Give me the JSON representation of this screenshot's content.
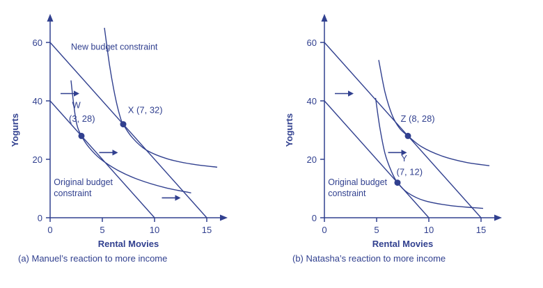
{
  "page": {
    "background": "#ffffff",
    "accent": "#31408f"
  },
  "chart_data": [
    {
      "type": "line",
      "panel": "a",
      "caption": "(a) Manuel’s reaction to more income",
      "xlabel": "Rental Movies",
      "ylabel": "Yogurts",
      "xlim": [
        0,
        17
      ],
      "ylim": [
        0,
        70
      ],
      "xticks": [
        0,
        5,
        10,
        15
      ],
      "yticks": [
        0,
        20,
        40,
        60
      ],
      "grid": false,
      "legend": "none",
      "budget_lines": [
        {
          "name": "original-budget-constraint",
          "points": [
            [
              0,
              40
            ],
            [
              10,
              0
            ]
          ]
        },
        {
          "name": "new-budget-constraint",
          "points": [
            [
              0,
              60
            ],
            [
              15,
              0
            ]
          ]
        }
      ],
      "annotations": [
        {
          "x": 2.0,
          "y": 57.5,
          "lines": [
            "New budget constraint"
          ]
        },
        {
          "x": 0.35,
          "y": 11.2,
          "lines": [
            "Original budget",
            "constraint"
          ]
        }
      ],
      "indifference_curves": [
        {
          "name": "indifference-curve-through-W",
          "points": [
            [
              2.0,
              47
            ],
            [
              2.25,
              39
            ],
            [
              2.55,
              32
            ],
            [
              3,
              28
            ],
            [
              3.7,
              24.2
            ],
            [
              4.8,
              20.2
            ],
            [
              6.5,
              16.2
            ],
            [
              8.5,
              13
            ],
            [
              11,
              10.3
            ],
            [
              13.5,
              8.5
            ]
          ]
        },
        {
          "name": "indifference-curve-through-X",
          "points": [
            [
              5.2,
              65
            ],
            [
              5.7,
              52
            ],
            [
              6.2,
              42
            ],
            [
              6.65,
              35.2
            ],
            [
              7,
              32
            ],
            [
              7.9,
              27.3
            ],
            [
              9.2,
              23.2
            ],
            [
              11.2,
              20.2
            ],
            [
              13.5,
              18.4
            ],
            [
              16,
              17.3
            ]
          ]
        }
      ],
      "points": [
        {
          "name": "W",
          "x": 3,
          "y": 28,
          "labels": [
            {
              "text": "W",
              "x": 2.1,
              "y": 37.5
            },
            {
              "text": "(3, 28)",
              "x": 1.8,
              "y": 32.8
            }
          ]
        },
        {
          "name": "X",
          "x": 7,
          "y": 32,
          "labels": [
            {
              "text": "X (7, 32)",
              "x": 7.45,
              "y": 35.8
            }
          ]
        }
      ],
      "arrows": [
        {
          "y": 42.5,
          "from": 1.0,
          "to": 2.8
        },
        {
          "y": 22.3,
          "from": 4.7,
          "to": 6.5
        },
        {
          "y": 6.8,
          "from": 10.7,
          "to": 12.5
        }
      ]
    },
    {
      "type": "line",
      "panel": "b",
      "caption": "(b) Natasha’s reaction to more income",
      "xlabel": "Rental Movies",
      "ylabel": "Yogurts",
      "xlim": [
        0,
        17
      ],
      "ylim": [
        0,
        70
      ],
      "xticks": [
        0,
        5,
        10,
        15
      ],
      "yticks": [
        0,
        20,
        40,
        60
      ],
      "grid": false,
      "legend": "none",
      "budget_lines": [
        {
          "name": "original-budget-constraint",
          "points": [
            [
              0,
              40
            ],
            [
              10,
              0
            ]
          ]
        },
        {
          "name": "new-budget-constraint",
          "points": [
            [
              0,
              60
            ],
            [
              15,
              0
            ]
          ]
        }
      ],
      "annotations": [
        {
          "x": 0.35,
          "y": 11.2,
          "lines": [
            "Original budget",
            "constraint"
          ]
        }
      ],
      "indifference_curves": [
        {
          "name": "indifference-curve-through-Y",
          "points": [
            [
              4.9,
              41
            ],
            [
              5.3,
              31
            ],
            [
              5.8,
              22
            ],
            [
              6.4,
              16
            ],
            [
              7,
              12
            ],
            [
              8,
              8.5
            ],
            [
              9.6,
              5.8
            ],
            [
              12,
              4.2
            ],
            [
              15.2,
              3.2
            ]
          ]
        },
        {
          "name": "indifference-curve-through-Z",
          "points": [
            [
              5.2,
              54
            ],
            [
              5.8,
              43
            ],
            [
              6.5,
              35
            ],
            [
              7.2,
              30.6
            ],
            [
              8,
              28
            ],
            [
              9.3,
              24.3
            ],
            [
              11.2,
              21.2
            ],
            [
              13.5,
              19
            ],
            [
              15.8,
              17.8
            ]
          ]
        }
      ],
      "points": [
        {
          "name": "Z",
          "x": 8,
          "y": 28,
          "labels": [
            {
              "text": "Z (8, 28)",
              "x": 7.3,
              "y": 32.8
            }
          ]
        },
        {
          "name": "Y",
          "x": 7,
          "y": 12,
          "labels": [
            {
              "text": "Y",
              "x": 7.35,
              "y": 19.3
            },
            {
              "text": "(7, 12)",
              "x": 6.9,
              "y": 14.6
            }
          ]
        }
      ],
      "arrows": [
        {
          "y": 42.5,
          "from": 1.0,
          "to": 2.8
        },
        {
          "y": 22.3,
          "from": 6.1,
          "to": 7.9
        }
      ]
    }
  ]
}
